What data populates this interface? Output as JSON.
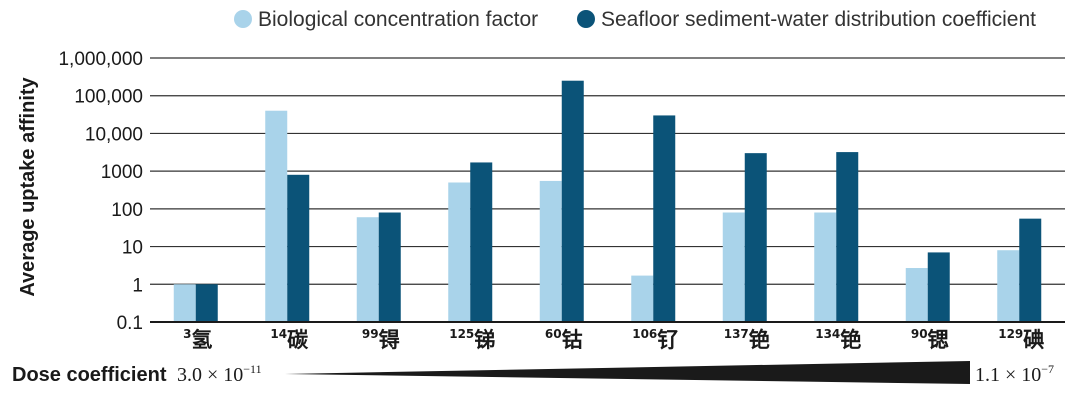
{
  "colors": {
    "bcf": "#a9d3ea",
    "kd": "#0b5378",
    "grid": "#333333",
    "text": "#1a1a1a"
  },
  "chart_data": {
    "type": "bar",
    "title": "",
    "xlabel": "",
    "ylabel": "Average uptake affinity",
    "yscale": "log",
    "ylim": [
      0.1,
      1000000
    ],
    "yticks": [
      0.1,
      1,
      10,
      100,
      1000,
      10000,
      100000,
      1000000
    ],
    "ytick_labels": [
      "0.1",
      "1",
      "10",
      "100",
      "1000",
      "10,000",
      "100,000",
      "1,000,000"
    ],
    "grid": "horizontal",
    "legend_position": "top",
    "categories": [
      {
        "mass": "3",
        "element": "氢"
      },
      {
        "mass": "14",
        "element": "碳"
      },
      {
        "mass": "99",
        "element": "锝"
      },
      {
        "mass": "125",
        "element": "锑"
      },
      {
        "mass": "60",
        "element": "钴"
      },
      {
        "mass": "106",
        "element": "钌"
      },
      {
        "mass": "137",
        "element": "铯"
      },
      {
        "mass": "134",
        "element": "铯"
      },
      {
        "mass": "90",
        "element": "锶"
      },
      {
        "mass": "129",
        "element": "碘"
      }
    ],
    "series": [
      {
        "name": "Biological concentration factor",
        "color": "#a9d3ea",
        "values": [
          1,
          40000,
          60,
          500,
          550,
          1.7,
          80,
          80,
          2.7,
          8
        ]
      },
      {
        "name": "Seafloor sediment-water distribution coefficient",
        "color": "#0b5378",
        "values": [
          1,
          800,
          80,
          1700,
          250000,
          30000,
          3000,
          3200,
          7,
          55
        ]
      }
    ]
  },
  "dose": {
    "label": "Dose coefficient",
    "low_mantissa": "3.0 × 10",
    "low_exp": "−11",
    "high_mantissa": "1.1 × 10",
    "high_exp": "−7"
  }
}
